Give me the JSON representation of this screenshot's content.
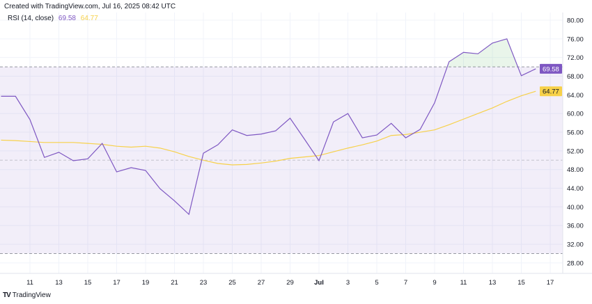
{
  "header": {
    "created": "Created with TradingView.com, Jul 16, 2025 08:42 UTC"
  },
  "legend": {
    "label": "RSI (14, close)",
    "rsi_value": "69.58",
    "ma_value": "64.77"
  },
  "footer": {
    "brand": "TradingView"
  },
  "colors": {
    "rsi": "#7e57c2",
    "ma": "#f7d149",
    "band": "#7e57c2",
    "overbought_fill": "#4caf50"
  },
  "chart_data": {
    "type": "line",
    "title": "RSI (14, close)",
    "ylim": [
      26,
      82
    ],
    "yticks": [
      "80.00",
      "76.00",
      "72.00",
      "68.00",
      "64.00",
      "60.00",
      "56.00",
      "52.00",
      "48.00",
      "44.00",
      "40.00",
      "36.00",
      "32.00",
      "28.00"
    ],
    "xtick_labels": [
      "11",
      "13",
      "15",
      "17",
      "19",
      "21",
      "23",
      "25",
      "27",
      "29",
      "Jul",
      "3",
      "5",
      "7",
      "9",
      "11",
      "13",
      "15",
      "17"
    ],
    "levels": {
      "upper": 70,
      "middle": 50,
      "lower": 30
    },
    "grid": true,
    "x": [
      "Jun 9",
      "Jun 10",
      "Jun 11",
      "Jun 12",
      "Jun 13",
      "Jun 14",
      "Jun 15",
      "Jun 16",
      "Jun 17",
      "Jun 18",
      "Jun 19",
      "Jun 20",
      "Jun 21",
      "Jun 22",
      "Jun 23",
      "Jun 24",
      "Jun 25",
      "Jun 26",
      "Jun 27",
      "Jun 28",
      "Jun 29",
      "Jun 30",
      "Jul 1",
      "Jul 2",
      "Jul 3",
      "Jul 4",
      "Jul 5",
      "Jul 6",
      "Jul 7",
      "Jul 8",
      "Jul 9",
      "Jul 10",
      "Jul 11",
      "Jul 12",
      "Jul 13",
      "Jul 14",
      "Jul 15",
      "Jul 16"
    ],
    "series": [
      {
        "last_label": "69.58",
        "values": [
          63.7,
          63.7,
          58.7,
          50.6,
          51.7,
          49.9,
          50.3,
          53.6,
          47.5,
          48.4,
          47.8,
          43.9,
          41.3,
          38.4,
          51.5,
          53.3,
          56.5,
          55.3,
          55.6,
          56.3,
          59.0,
          54.5,
          49.9,
          58.2,
          60.0,
          54.8,
          55.4,
          57.9,
          54.8,
          56.6,
          62.3,
          71.1,
          73.1,
          72.8,
          75.1,
          76.0,
          68.1,
          69.58
        ]
      },
      {
        "last_label": "64.77",
        "values": [
          54.3,
          54.2,
          54.0,
          53.8,
          53.8,
          53.8,
          53.6,
          53.4,
          53.0,
          52.8,
          53.0,
          52.6,
          51.8,
          50.8,
          50.0,
          49.3,
          49.0,
          49.1,
          49.4,
          49.8,
          50.4,
          50.7,
          51.0,
          51.8,
          52.6,
          53.3,
          54.1,
          55.3,
          55.5,
          56.0,
          56.5,
          57.6,
          58.8,
          60.0,
          61.2,
          62.6,
          63.8,
          64.77
        ]
      }
    ]
  }
}
